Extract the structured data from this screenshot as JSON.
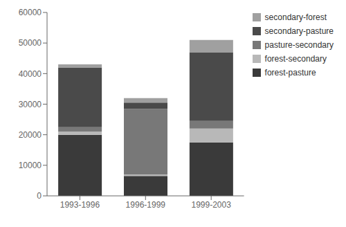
{
  "chart_data": {
    "type": "bar",
    "stacked": true,
    "categories": [
      "1993-1996",
      "1996-1999",
      "1999-2003"
    ],
    "series": [
      {
        "name": "forest-pasture",
        "color": "#3a3a3a",
        "values": [
          20000,
          6500,
          17500
        ]
      },
      {
        "name": "forest-secondary",
        "color": "#b8b8b8",
        "values": [
          1000,
          500,
          4500
        ]
      },
      {
        "name": "pasture-secondary",
        "color": "#787878",
        "values": [
          1500,
          21500,
          2500
        ]
      },
      {
        "name": "secondary-pasture",
        "color": "#4a4a4a",
        "values": [
          19500,
          2000,
          22500
        ]
      },
      {
        "name": "secondary-forest",
        "color": "#a0a0a0",
        "values": [
          1000,
          1500,
          4000
        ]
      }
    ],
    "ylim": [
      0,
      60000
    ],
    "yticks": [
      0,
      10000,
      20000,
      30000,
      40000,
      50000,
      60000
    ],
    "grid": false,
    "legend": "upper right"
  }
}
